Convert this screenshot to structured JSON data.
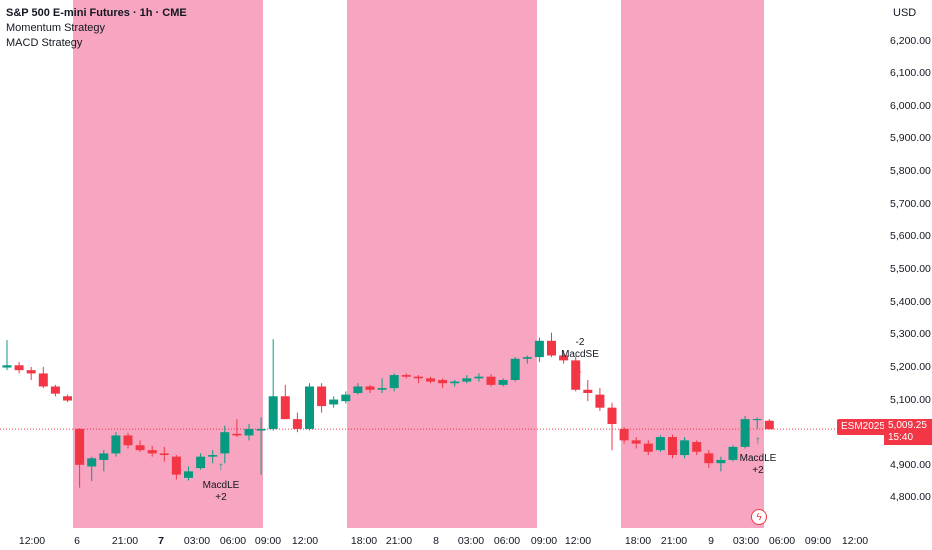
{
  "legend": {
    "symbol": "S&P 500 E-mini Futures · 1h · CME",
    "indicators": [
      "Momentum Strategy",
      "MACD Strategy"
    ]
  },
  "currency": "USD",
  "ticker": "ESM2025",
  "last_price": "5,009.25",
  "countdown": "15:40",
  "colors": {
    "up": "#089981",
    "down": "#f23645",
    "session": "#f7a5c0"
  },
  "chart_data": {
    "type": "candlestick",
    "price_ticks": [
      "6,200.00",
      "6,100.00",
      "6,000.00",
      "5,900.00",
      "5,800.00",
      "5,700.00",
      "5,600.00",
      "5,500.00",
      "5,400.00",
      "5,300.00",
      "5,200.00",
      "5,100.00",
      "4,900.00",
      "4,800.00"
    ],
    "time_labels": [
      {
        "text": "12:00",
        "bold": false
      },
      {
        "text": "6",
        "bold": false
      },
      {
        "text": "21:00",
        "bold": false
      },
      {
        "text": "7",
        "bold": true
      },
      {
        "text": "03:00",
        "bold": false
      },
      {
        "text": "06:00",
        "bold": false
      },
      {
        "text": "09:00",
        "bold": false
      },
      {
        "text": "12:00",
        "bold": false
      },
      {
        "text": "18:00",
        "bold": false
      },
      {
        "text": "21:00",
        "bold": false
      },
      {
        "text": "8",
        "bold": false
      },
      {
        "text": "03:00",
        "bold": false
      },
      {
        "text": "06:00",
        "bold": false
      },
      {
        "text": "09:00",
        "bold": false
      },
      {
        "text": "12:00",
        "bold": false
      },
      {
        "text": "18:00",
        "bold": false
      },
      {
        "text": "21:00",
        "bold": false
      },
      {
        "text": "9",
        "bold": false
      },
      {
        "text": "03:00",
        "bold": false
      },
      {
        "text": "06:00",
        "bold": false
      },
      {
        "text": "09:00",
        "bold": false
      },
      {
        "text": "12:00",
        "bold": false
      }
    ],
    "candles": [
      {
        "o": 5198,
        "h": 5282,
        "l": 5190,
        "c": 5205
      },
      {
        "o": 5205,
        "h": 5215,
        "l": 5180,
        "c": 5190
      },
      {
        "o": 5190,
        "h": 5200,
        "l": 5160,
        "c": 5180
      },
      {
        "o": 5180,
        "h": 5200,
        "l": 5135,
        "c": 5140
      },
      {
        "o": 5140,
        "h": 5145,
        "l": 5110,
        "c": 5118
      },
      {
        "o": 5110,
        "h": 5115,
        "l": 5092,
        "c": 5097
      },
      {
        "o": 5010,
        "h": 5012,
        "l": 4830,
        "c": 4900
      },
      {
        "o": 4895,
        "h": 4925,
        "l": 4850,
        "c": 4920
      },
      {
        "o": 4915,
        "h": 4945,
        "l": 4880,
        "c": 4935
      },
      {
        "o": 4935,
        "h": 5000,
        "l": 4925,
        "c": 4990
      },
      {
        "o": 4990,
        "h": 4998,
        "l": 4950,
        "c": 4960
      },
      {
        "o": 4960,
        "h": 4975,
        "l": 4940,
        "c": 4945
      },
      {
        "o": 4945,
        "h": 4958,
        "l": 4925,
        "c": 4935
      },
      {
        "o": 4935,
        "h": 4955,
        "l": 4910,
        "c": 4930
      },
      {
        "o": 4925,
        "h": 4930,
        "l": 4855,
        "c": 4870
      },
      {
        "o": 4860,
        "h": 4895,
        "l": 4852,
        "c": 4880
      },
      {
        "o": 4890,
        "h": 4935,
        "l": 4885,
        "c": 4925
      },
      {
        "o": 4925,
        "h": 4945,
        "l": 4905,
        "c": 4930
      },
      {
        "o": 4935,
        "h": 5020,
        "l": 4905,
        "c": 5000
      },
      {
        "o": 4995,
        "h": 5040,
        "l": 4985,
        "c": 4990
      },
      {
        "o": 4990,
        "h": 5025,
        "l": 4975,
        "c": 5010
      },
      {
        "o": 5005,
        "h": 5045,
        "l": 4870,
        "c": 5010
      },
      {
        "o": 5010,
        "h": 5285,
        "l": 5005,
        "c": 5110
      },
      {
        "o": 5110,
        "h": 5145,
        "l": 5040,
        "c": 5040
      },
      {
        "o": 5040,
        "h": 5060,
        "l": 5000,
        "c": 5010
      },
      {
        "o": 5010,
        "h": 5150,
        "l": 5005,
        "c": 5140
      },
      {
        "o": 5140,
        "h": 5150,
        "l": 5060,
        "c": 5080
      },
      {
        "o": 5085,
        "h": 5110,
        "l": 5075,
        "c": 5100
      },
      {
        "o": 5095,
        "h": 5125,
        "l": 5088,
        "c": 5115
      },
      {
        "o": 5120,
        "h": 5150,
        "l": 5115,
        "c": 5140
      },
      {
        "o": 5140,
        "h": 5145,
        "l": 5120,
        "c": 5130
      },
      {
        "o": 5130,
        "h": 5165,
        "l": 5120,
        "c": 5135
      },
      {
        "o": 5135,
        "h": 5180,
        "l": 5125,
        "c": 5175
      },
      {
        "o": 5175,
        "h": 5180,
        "l": 5165,
        "c": 5170
      },
      {
        "o": 5170,
        "h": 5175,
        "l": 5150,
        "c": 5165
      },
      {
        "o": 5165,
        "h": 5170,
        "l": 5150,
        "c": 5155
      },
      {
        "o": 5160,
        "h": 5165,
        "l": 5135,
        "c": 5150
      },
      {
        "o": 5150,
        "h": 5160,
        "l": 5140,
        "c": 5155
      },
      {
        "o": 5155,
        "h": 5175,
        "l": 5150,
        "c": 5165
      },
      {
        "o": 5165,
        "h": 5180,
        "l": 5155,
        "c": 5170
      },
      {
        "o": 5170,
        "h": 5178,
        "l": 5140,
        "c": 5145
      },
      {
        "o": 5145,
        "h": 5165,
        "l": 5140,
        "c": 5160
      },
      {
        "o": 5160,
        "h": 5230,
        "l": 5155,
        "c": 5225
      },
      {
        "o": 5225,
        "h": 5235,
        "l": 5210,
        "c": 5230
      },
      {
        "o": 5230,
        "h": 5290,
        "l": 5215,
        "c": 5280
      },
      {
        "o": 5280,
        "h": 5305,
        "l": 5230,
        "c": 5235
      },
      {
        "o": 5235,
        "h": 5250,
        "l": 5210,
        "c": 5220
      },
      {
        "o": 5220,
        "h": 5232,
        "l": 5125,
        "c": 5130
      },
      {
        "o": 5130,
        "h": 5160,
        "l": 5095,
        "c": 5120
      },
      {
        "o": 5115,
        "h": 5135,
        "l": 5065,
        "c": 5075
      },
      {
        "o": 5075,
        "h": 5090,
        "l": 4945,
        "c": 5025
      },
      {
        "o": 5010,
        "h": 5015,
        "l": 4965,
        "c": 4975
      },
      {
        "o": 4975,
        "h": 4985,
        "l": 4950,
        "c": 4965
      },
      {
        "o": 4965,
        "h": 4975,
        "l": 4930,
        "c": 4940
      },
      {
        "o": 4945,
        "h": 4990,
        "l": 4940,
        "c": 4985
      },
      {
        "o": 4985,
        "h": 4992,
        "l": 4920,
        "c": 4930
      },
      {
        "o": 4930,
        "h": 4985,
        "l": 4920,
        "c": 4975
      },
      {
        "o": 4970,
        "h": 4975,
        "l": 4930,
        "c": 4940
      },
      {
        "o": 4935,
        "h": 4945,
        "l": 4890,
        "c": 4905
      },
      {
        "o": 4905,
        "h": 4925,
        "l": 4880,
        "c": 4915
      },
      {
        "o": 4915,
        "h": 4960,
        "l": 4910,
        "c": 4955
      },
      {
        "o": 4955,
        "h": 5050,
        "l": 4950,
        "c": 5040
      },
      {
        "o": 5040,
        "h": 5045,
        "l": 5010,
        "c": 5040
      },
      {
        "o": 5035,
        "h": 5040,
        "l": 5008,
        "c": 5009
      }
    ],
    "annotations": [
      {
        "text": "MacdLE",
        "qty": "+2",
        "dir": "up"
      },
      {
        "text": "MacdSE",
        "qty": "-2",
        "dir": "down"
      },
      {
        "text": "MacdLE",
        "qty": "+2",
        "dir": "up"
      }
    ]
  }
}
